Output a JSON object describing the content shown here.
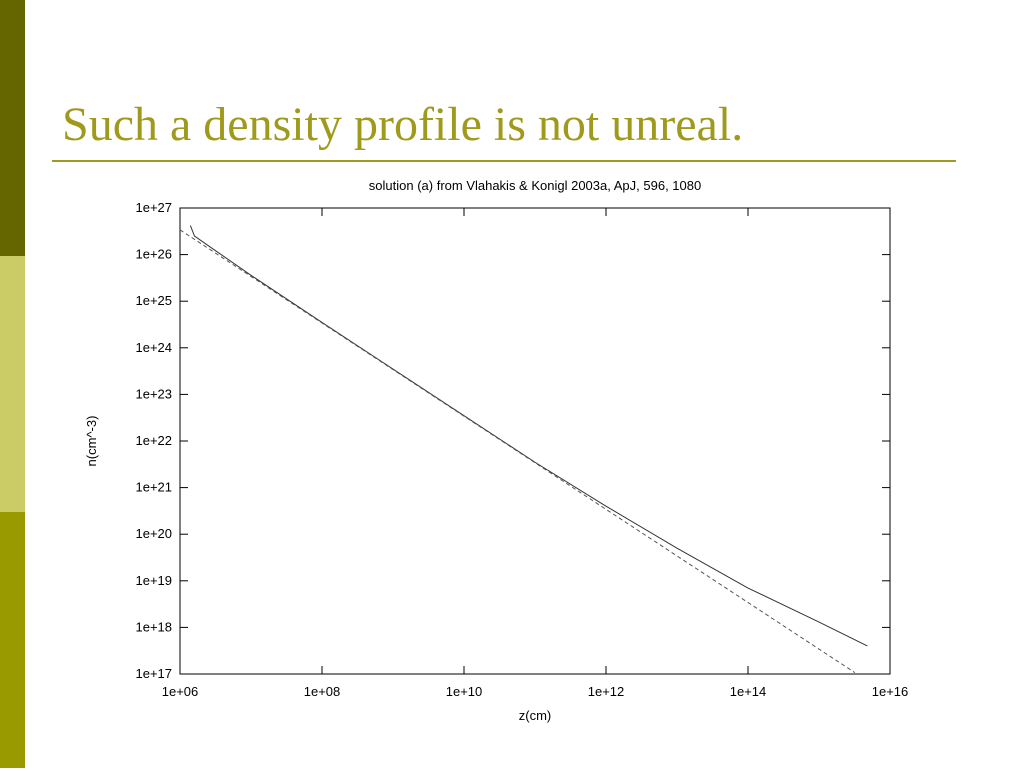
{
  "title": "Such a density profile is not unreal.",
  "chart_data": {
    "type": "line",
    "title": "solution (a) from Vlahakis & Konigl 2003a, ApJ, 596, 1080",
    "xlabel": "z(cm)",
    "ylabel": "n(cm^-3)",
    "xscale": "log",
    "yscale": "log",
    "xlim": [
      1000000.0,
      1e+16
    ],
    "ylim": [
      1e+17,
      1e+27
    ],
    "xticks": [
      {
        "value": 1000000.0,
        "label": "1e+06"
      },
      {
        "value": 100000000.0,
        "label": "1e+08"
      },
      {
        "value": 10000000000.0,
        "label": "1e+10"
      },
      {
        "value": 1000000000000.0,
        "label": "1e+12"
      },
      {
        "value": 100000000000000.0,
        "label": "1e+14"
      },
      {
        "value": 1e+16,
        "label": "1e+16"
      }
    ],
    "yticks": [
      {
        "value": 1e+17,
        "label": "1e+17"
      },
      {
        "value": 1e+18,
        "label": "1e+18"
      },
      {
        "value": 1e+19,
        "label": "1e+19"
      },
      {
        "value": 1e+20,
        "label": "1e+20"
      },
      {
        "value": 1e+21,
        "label": "1e+21"
      },
      {
        "value": 1e+22,
        "label": "1e+22"
      },
      {
        "value": 1e+23,
        "label": "1e+23"
      },
      {
        "value": 1e+24,
        "label": "1e+24"
      },
      {
        "value": 1e+25,
        "label": "1e+25"
      },
      {
        "value": 1e+26,
        "label": "1e+26"
      },
      {
        "value": 1e+27,
        "label": "1e+27"
      }
    ],
    "series": [
      {
        "color": "#333333",
        "linestyle": "solid",
        "x": [
          1400000.0,
          1600000.0,
          3200000.0,
          10000000.0,
          100000000.0,
          1000000000.0,
          10000000000.0,
          100000000000.0,
          1000000000000.0,
          10000000000000.0,
          100000000000000.0,
          1000000000000000.0,
          4800000000000000.0
        ],
        "values": [
          4.2e+26,
          2.5e+26,
          1.2e+26,
          3.6e+25,
          3.5e+24,
          3.5e+23,
          3.5e+22,
          3.5e+21,
          4e+20,
          5e+19,
          7e+18,
          1.3e+18,
          4e+17
        ]
      },
      {
        "color": "#555555",
        "linestyle": "dashed",
        "x": [
          1000000.0,
          3200000000000000.0
        ],
        "values": [
          3.4e+26,
          1.07e+17
        ]
      }
    ]
  }
}
